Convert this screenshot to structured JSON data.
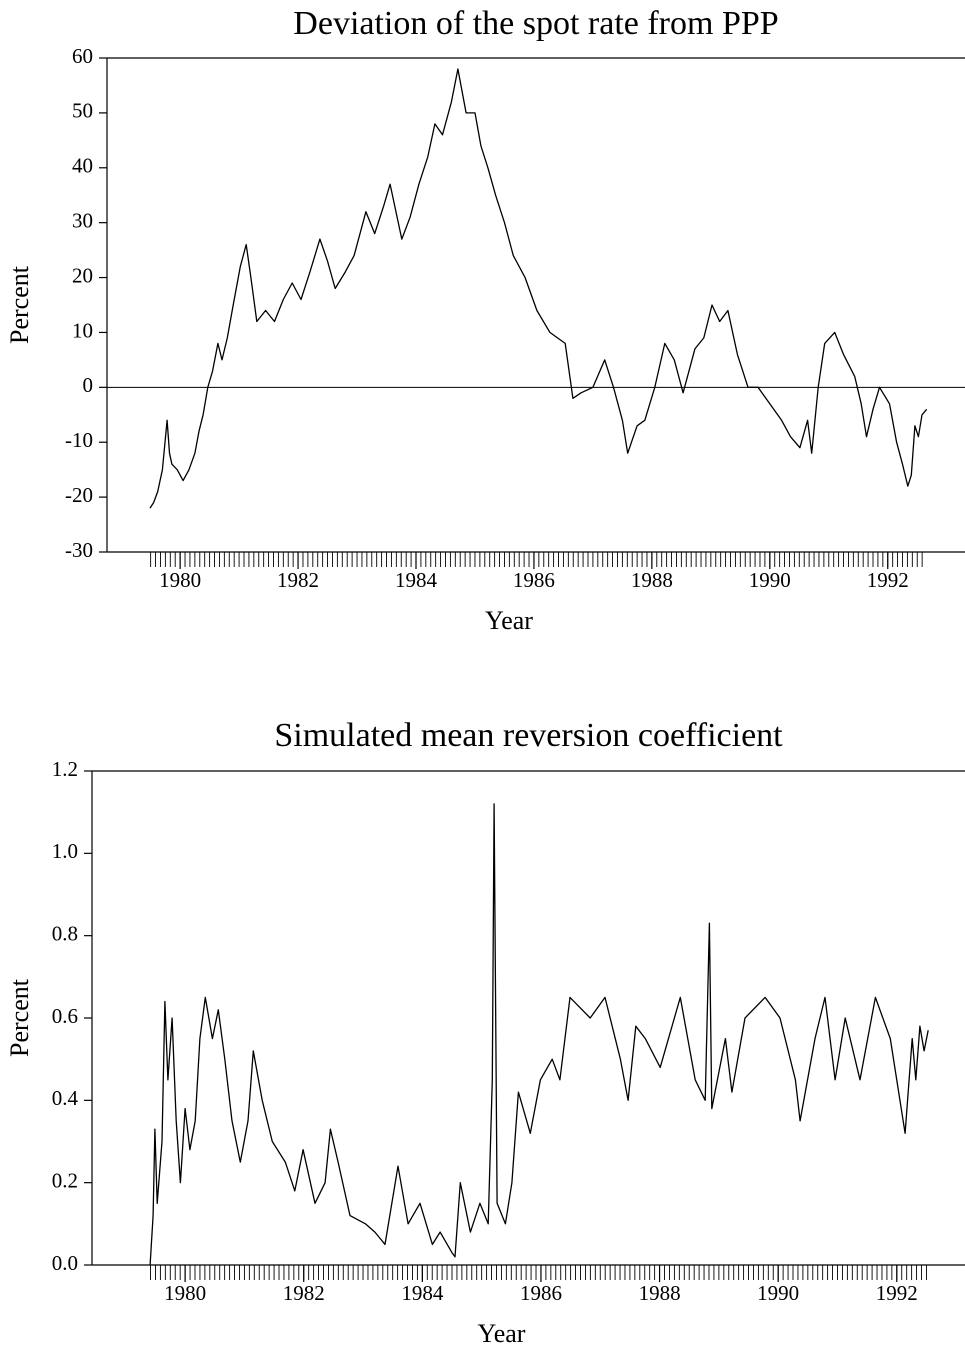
{
  "chart_data": [
    {
      "type": "line",
      "title": "Deviation of the spot rate from PPP",
      "xlabel": "Year",
      "ylabel": "Percent",
      "color": "#000000",
      "xlim": [
        1978.76,
        1993.31
      ],
      "xticks": [
        1980,
        1982,
        1984,
        1986,
        1988,
        1990,
        1992
      ],
      "ylim": [
        -30,
        60
      ],
      "yticks": [
        -30,
        -20,
        -10,
        0,
        10,
        20,
        30,
        40,
        50,
        60
      ],
      "zero_line": true,
      "minor_ticks_per_year": 12,
      "x": [
        1979.49,
        1979.55,
        1979.62,
        1979.7,
        1979.78,
        1979.82,
        1979.86,
        1979.95,
        1980.05,
        1980.15,
        1980.25,
        1980.32,
        1980.39,
        1980.47,
        1980.55,
        1980.64,
        1980.71,
        1980.8,
        1980.9,
        1981.02,
        1981.12,
        1981.2,
        1981.3,
        1981.45,
        1981.6,
        1981.75,
        1981.9,
        1982.05,
        1982.2,
        1982.37,
        1982.5,
        1982.63,
        1982.8,
        1982.95,
        1983.15,
        1983.3,
        1983.45,
        1983.56,
        1983.76,
        1983.9,
        1984.05,
        1984.2,
        1984.32,
        1984.45,
        1984.6,
        1984.71,
        1984.85,
        1985.0,
        1985.1,
        1985.22,
        1985.35,
        1985.5,
        1985.65,
        1985.85,
        1986.05,
        1986.27,
        1986.4,
        1986.53,
        1986.66,
        1986.8,
        1987.0,
        1987.2,
        1987.35,
        1987.5,
        1987.59,
        1987.75,
        1987.88,
        1988.05,
        1988.22,
        1988.38,
        1988.53,
        1988.63,
        1988.73,
        1988.88,
        1989.02,
        1989.15,
        1989.29,
        1989.45,
        1989.63,
        1989.8,
        1990.0,
        1990.2,
        1990.35,
        1990.51,
        1990.64,
        1990.71,
        1990.82,
        1990.93,
        1991.1,
        1991.25,
        1991.44,
        1991.55,
        1991.64,
        1991.75,
        1991.86,
        1992.03,
        1992.15,
        1992.25,
        1992.34,
        1992.4,
        1992.46,
        1992.52,
        1992.58,
        1992.66
      ],
      "values": [
        -22,
        -21,
        -19,
        -15,
        -6,
        -12,
        -14,
        -15,
        -17,
        -15,
        -12,
        -8,
        -5,
        0,
        3,
        8,
        5,
        9,
        15,
        22,
        26,
        20,
        12,
        14,
        12,
        16,
        19,
        16,
        21,
        27,
        23,
        18,
        21,
        24,
        32,
        28,
        33,
        37,
        27,
        31,
        37,
        42,
        48,
        46,
        52,
        58,
        50,
        50,
        44,
        40,
        35,
        30,
        24,
        20,
        14,
        10,
        9,
        8,
        -2,
        -1,
        0,
        5,
        0,
        -6,
        -12,
        -7,
        -6,
        0,
        8,
        5,
        -1,
        3,
        7,
        9,
        15,
        12,
        14,
        6,
        0,
        0,
        -3,
        -6,
        -9,
        -11,
        -6,
        -12,
        0,
        8,
        10,
        6,
        2,
        -3,
        -9,
        -4,
        0,
        -3,
        -10,
        -14,
        -18,
        -16,
        -7,
        -9,
        -5,
        -4
      ]
    },
    {
      "type": "line",
      "title": "Simulated mean reversion coefficient",
      "xlabel": "Year",
      "ylabel": "Percent",
      "color": "#000000",
      "xlim": [
        1978.43,
        1993.15
      ],
      "xticks": [
        1980,
        1982,
        1984,
        1986,
        1988,
        1990,
        1992
      ],
      "ylim": [
        0,
        1.2
      ],
      "yticks": [
        {
          "value": 0,
          "label": "0.0"
        },
        0.2,
        0.4,
        0.6,
        0.8,
        {
          "value": 1,
          "label": "1.0"
        },
        1.2
      ],
      "zero_line": false,
      "minor_ticks_per_year": 12,
      "x": [
        1979.41,
        1979.46,
        1979.49,
        1979.53,
        1979.61,
        1979.66,
        1979.71,
        1979.78,
        1979.85,
        1979.92,
        1980.0,
        1980.08,
        1980.17,
        1980.25,
        1980.34,
        1980.46,
        1980.56,
        1980.67,
        1980.79,
        1980.93,
        1981.06,
        1981.15,
        1981.3,
        1981.47,
        1981.69,
        1981.85,
        1981.99,
        1982.19,
        1982.36,
        1982.45,
        1982.58,
        1982.78,
        1983.04,
        1983.2,
        1983.37,
        1983.59,
        1983.76,
        1983.96,
        1984.17,
        1984.3,
        1984.5,
        1984.55,
        1984.64,
        1984.81,
        1984.97,
        1985.11,
        1985.18,
        1985.21,
        1985.26,
        1985.4,
        1985.51,
        1985.62,
        1985.82,
        1985.99,
        1986.19,
        1986.32,
        1986.49,
        1986.83,
        1987.08,
        1987.34,
        1987.47,
        1987.6,
        1987.76,
        1988.01,
        1988.35,
        1988.6,
        1988.77,
        1988.84,
        1988.88,
        1989.11,
        1989.22,
        1989.44,
        1989.78,
        1990.03,
        1990.29,
        1990.37,
        1990.62,
        1990.79,
        1990.96,
        1991.13,
        1991.38,
        1991.64,
        1991.89,
        1992.14,
        1992.26,
        1992.32,
        1992.39,
        1992.46,
        1992.53
      ],
      "values": [
        0,
        0.12,
        0.33,
        0.15,
        0.3,
        0.64,
        0.45,
        0.6,
        0.35,
        0.2,
        0.38,
        0.28,
        0.35,
        0.55,
        0.65,
        0.55,
        0.62,
        0.5,
        0.35,
        0.25,
        0.35,
        0.52,
        0.4,
        0.3,
        0.25,
        0.18,
        0.28,
        0.15,
        0.2,
        0.33,
        0.25,
        0.12,
        0.1,
        0.08,
        0.05,
        0.24,
        0.1,
        0.15,
        0.05,
        0.08,
        0.03,
        0.02,
        0.2,
        0.08,
        0.15,
        0.1,
        0.45,
        1.12,
        0.15,
        0.1,
        0.2,
        0.42,
        0.32,
        0.45,
        0.5,
        0.45,
        0.65,
        0.6,
        0.65,
        0.5,
        0.4,
        0.58,
        0.55,
        0.48,
        0.65,
        0.45,
        0.4,
        0.83,
        0.38,
        0.55,
        0.42,
        0.6,
        0.65,
        0.6,
        0.45,
        0.35,
        0.55,
        0.65,
        0.45,
        0.6,
        0.45,
        0.65,
        0.55,
        0.32,
        0.55,
        0.45,
        0.58,
        0.52,
        0.57
      ]
    }
  ]
}
